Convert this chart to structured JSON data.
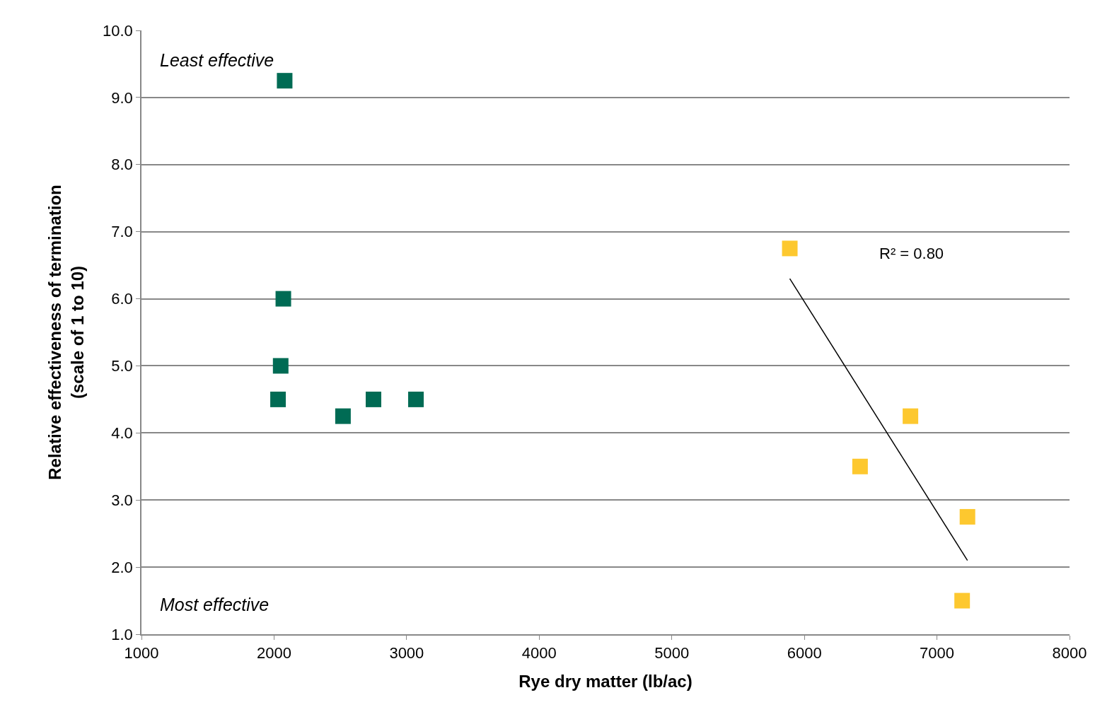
{
  "chart_data": {
    "type": "scatter",
    "xlabel": "Rye dry matter (lb/ac)",
    "ylabel": "Relative effectiveness of termination\n(scale of 1 to 10)",
    "marker": "square",
    "grid": "y",
    "xlim": [
      1000,
      8000
    ],
    "xticks": [
      1000,
      2000,
      3000,
      4000,
      5000,
      6000,
      7000,
      8000
    ],
    "ylim": [
      1,
      10
    ],
    "yticks": [
      {
        "value": 1,
        "label": "1.0"
      },
      {
        "value": 2,
        "label": "2.0"
      },
      {
        "value": 3,
        "label": "3.0"
      },
      {
        "value": 4,
        "label": "4.0"
      },
      {
        "value": 5,
        "label": "5.0"
      },
      {
        "value": 6,
        "label": "6.0"
      },
      {
        "value": 7,
        "label": "7.0"
      },
      {
        "value": 8,
        "label": "8.0"
      },
      {
        "value": 9,
        "label": "9.0"
      },
      {
        "value": 10,
        "label": "10.0"
      }
    ],
    "series": [
      {
        "color": "#006b54",
        "x": [
          2080,
          2070,
          2050,
          2030,
          2520,
          2750,
          3070
        ],
        "values": [
          9.25,
          6.0,
          5.0,
          4.5,
          4.25,
          4.5,
          4.5
        ]
      },
      {
        "color": "#fdc82f",
        "x": [
          5890,
          6420,
          6800,
          7230,
          7190
        ],
        "values": [
          6.75,
          3.5,
          4.25,
          2.75,
          1.5
        ]
      },
      {
        "type": "line",
        "marker": "none",
        "color": "#000000",
        "x": [
          5890,
          7230
        ],
        "values": [
          6.3,
          2.1
        ]
      }
    ],
    "annotations": [
      "Least effective",
      "Most effective",
      "R² = 0.80"
    ]
  }
}
